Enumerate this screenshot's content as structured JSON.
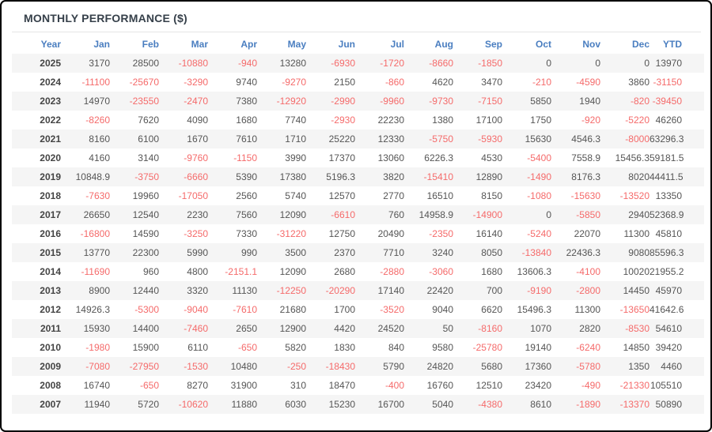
{
  "title": "MONTHLY PERFORMANCE ($)",
  "colors": {
    "header_text": "#4a7ec0",
    "negative_value": "#f56a6a",
    "positive_value": "#555555",
    "year_text": "#444444",
    "title_text": "#36404a",
    "row_stripe": "#f5f5f5",
    "frame_border": "#000000",
    "divider": "#e4e4e4"
  },
  "table": {
    "columns": [
      "Year",
      "Jan",
      "Feb",
      "Mar",
      "Apr",
      "May",
      "Jun",
      "Jul",
      "Aug",
      "Sep",
      "Oct",
      "Nov",
      "Dec",
      "YTD"
    ],
    "rows": [
      {
        "year": "2025",
        "values": [
          "3170",
          "28500",
          "-10880",
          "-940",
          "13280",
          "-6930",
          "-1720",
          "-8660",
          "-1850",
          "0",
          "0",
          "0",
          "13970"
        ]
      },
      {
        "year": "2024",
        "values": [
          "-11100",
          "-25670",
          "-3290",
          "9740",
          "-9270",
          "2150",
          "-860",
          "4620",
          "3470",
          "-210",
          "-4590",
          "3860",
          "-31150"
        ]
      },
      {
        "year": "2023",
        "values": [
          "14970",
          "-23550",
          "-2470",
          "7380",
          "-12920",
          "-2990",
          "-9960",
          "-9730",
          "-7150",
          "5850",
          "1940",
          "-820",
          "-39450"
        ]
      },
      {
        "year": "2022",
        "values": [
          "-8260",
          "7620",
          "4090",
          "1680",
          "7740",
          "-2930",
          "22230",
          "1380",
          "17100",
          "1750",
          "-920",
          "-5220",
          "46260"
        ]
      },
      {
        "year": "2021",
        "values": [
          "8160",
          "6100",
          "1670",
          "7610",
          "1710",
          "25220",
          "12330",
          "-5750",
          "-5930",
          "15630",
          "4546.3",
          "-8000",
          "63296.3"
        ]
      },
      {
        "year": "2020",
        "values": [
          "4160",
          "3140",
          "-9760",
          "-1150",
          "3990",
          "17370",
          "13060",
          "6226.3",
          "4530",
          "-5400",
          "7558.9",
          "15456.3",
          "59181.5"
        ]
      },
      {
        "year": "2019",
        "values": [
          "10848.9",
          "-3750",
          "-6660",
          "5390",
          "17380",
          "5196.3",
          "3820",
          "-15410",
          "12890",
          "-1490",
          "8176.3",
          "8020",
          "44411.5"
        ]
      },
      {
        "year": "2018",
        "values": [
          "-7630",
          "19960",
          "-17050",
          "2560",
          "5740",
          "12570",
          "2770",
          "16510",
          "8150",
          "-1080",
          "-15630",
          "-13520",
          "13350"
        ]
      },
      {
        "year": "2017",
        "values": [
          "26650",
          "12540",
          "2230",
          "7560",
          "12090",
          "-6610",
          "760",
          "14958.9",
          "-14900",
          "0",
          "-5850",
          "2940",
          "52368.9"
        ]
      },
      {
        "year": "2016",
        "values": [
          "-16800",
          "14590",
          "-3250",
          "7330",
          "-31220",
          "12750",
          "20490",
          "-2350",
          "16140",
          "-5240",
          "22070",
          "11300",
          "45810"
        ]
      },
      {
        "year": "2015",
        "values": [
          "13770",
          "22300",
          "5990",
          "990",
          "3500",
          "2370",
          "7710",
          "3240",
          "8050",
          "-13840",
          "22436.3",
          "9080",
          "85596.3"
        ]
      },
      {
        "year": "2014",
        "values": [
          "-11690",
          "960",
          "4800",
          "-2151.1",
          "12090",
          "2680",
          "-2880",
          "-3060",
          "1680",
          "13606.3",
          "-4100",
          "10020",
          "21955.2"
        ]
      },
      {
        "year": "2013",
        "values": [
          "8900",
          "12440",
          "3320",
          "11130",
          "-12250",
          "-20290",
          "17140",
          "22420",
          "700",
          "-9190",
          "-2800",
          "14450",
          "45970"
        ]
      },
      {
        "year": "2012",
        "values": [
          "14926.3",
          "-5300",
          "-9040",
          "-7610",
          "21680",
          "1700",
          "-3520",
          "9040",
          "6620",
          "15496.3",
          "11300",
          "-13650",
          "41642.6"
        ]
      },
      {
        "year": "2011",
        "values": [
          "15930",
          "14400",
          "-7460",
          "2650",
          "12900",
          "4420",
          "24520",
          "50",
          "-8160",
          "1070",
          "2820",
          "-8530",
          "54610"
        ]
      },
      {
        "year": "2010",
        "values": [
          "-1980",
          "15900",
          "6110",
          "-650",
          "5820",
          "1830",
          "840",
          "9580",
          "-25780",
          "19140",
          "-6240",
          "14850",
          "39420"
        ]
      },
      {
        "year": "2009",
        "values": [
          "-7080",
          "-27950",
          "-1530",
          "10480",
          "-250",
          "-18430",
          "5790",
          "24820",
          "5680",
          "17360",
          "-5780",
          "1350",
          "4460"
        ]
      },
      {
        "year": "2008",
        "values": [
          "16740",
          "-650",
          "8270",
          "31900",
          "310",
          "18470",
          "-400",
          "16760",
          "12510",
          "23420",
          "-490",
          "-21330",
          "105510"
        ]
      },
      {
        "year": "2007",
        "values": [
          "11940",
          "5720",
          "-10620",
          "11880",
          "6030",
          "15230",
          "16700",
          "5040",
          "-4380",
          "8610",
          "-1890",
          "-13370",
          "50890"
        ]
      }
    ]
  }
}
